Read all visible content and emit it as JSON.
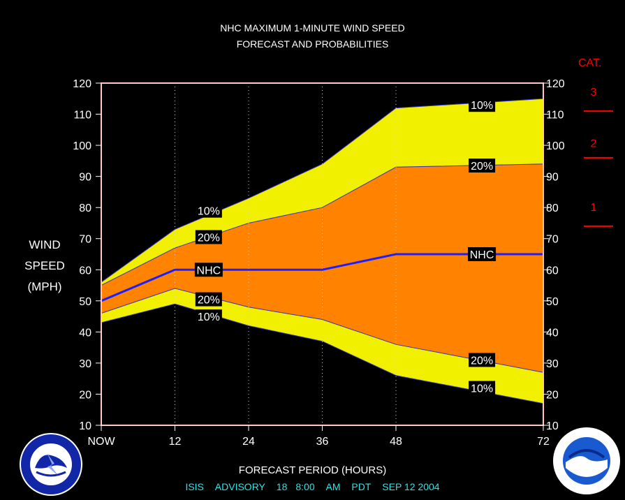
{
  "title": {
    "line1": "NHC MAXIMUM 1-MINUTE WIND SPEED",
    "line2": "FORECAST AND PROBABILITIES"
  },
  "ylabel": [
    "WIND",
    "SPEED",
    "(MPH)"
  ],
  "xlabel": "FORECAST PERIOD (HOURS)",
  "footer": {
    "system": "ISIS",
    "advisory_label": "ADVISORY",
    "advisory_number": "18",
    "time": "8:00",
    "ampm": "AM",
    "tz": "PDT",
    "date": "SEP 12 2004"
  },
  "category_scale": {
    "title": "CAT.",
    "labels": [
      {
        "label": "3",
        "value": 120
      },
      {
        "label": "2",
        "value": 103.5
      },
      {
        "label": "1",
        "value": 83
      }
    ],
    "thresholds": [
      111,
      96,
      74
    ],
    "color": "#ff0000"
  },
  "logos": {
    "left": "nws-logo",
    "right": "noaa-logo"
  },
  "chart_data": {
    "type": "area",
    "xlim": [
      0,
      72
    ],
    "ylim": [
      10,
      120
    ],
    "yticks": [
      10,
      20,
      30,
      40,
      50,
      60,
      70,
      80,
      90,
      100,
      110,
      120
    ],
    "xticks": [
      {
        "value": 0,
        "label": "NOW"
      },
      {
        "value": 12,
        "label": "12"
      },
      {
        "value": 24,
        "label": "24"
      },
      {
        "value": 36,
        "label": "36"
      },
      {
        "value": 48,
        "label": "48"
      },
      {
        "value": 72,
        "label": "72"
      }
    ],
    "x": [
      0,
      12,
      24,
      36,
      48,
      72
    ],
    "series": [
      {
        "name": "10%",
        "bound": "upper",
        "values": [
          56,
          73,
          83,
          94,
          112,
          115
        ]
      },
      {
        "name": "20%",
        "bound": "upper",
        "values": [
          55,
          67,
          75,
          80,
          93,
          94
        ]
      },
      {
        "name": "NHC",
        "values": [
          50,
          60,
          60,
          60,
          65,
          65
        ]
      },
      {
        "name": "20%",
        "bound": "lower",
        "values": [
          46,
          54,
          48,
          44,
          36,
          27
        ]
      },
      {
        "name": "10%",
        "bound": "lower",
        "values": [
          43,
          49,
          42,
          37,
          26,
          17
        ]
      }
    ],
    "labels": [
      {
        "text": "10%",
        "x": 17.5,
        "y": 79
      },
      {
        "text": "20%",
        "x": 17.5,
        "y": 70.5
      },
      {
        "text": "NHC",
        "x": 17.5,
        "y": 60
      },
      {
        "text": "20%",
        "x": 17.5,
        "y": 50.5
      },
      {
        "text": "10%",
        "x": 17.5,
        "y": 45
      },
      {
        "text": "10%",
        "x": 62,
        "y": 113
      },
      {
        "text": "20%",
        "x": 62,
        "y": 93.5
      },
      {
        "text": "NHC",
        "x": 62,
        "y": 65
      },
      {
        "text": "20%",
        "x": 62,
        "y": 31
      },
      {
        "text": "10%",
        "x": 62,
        "y": 22
      }
    ],
    "colors": {
      "outer_band": "#f0f000",
      "inner_band": "#ff8200",
      "nhc_line": "#1e1eff",
      "frame": "#ffc8c8"
    }
  }
}
